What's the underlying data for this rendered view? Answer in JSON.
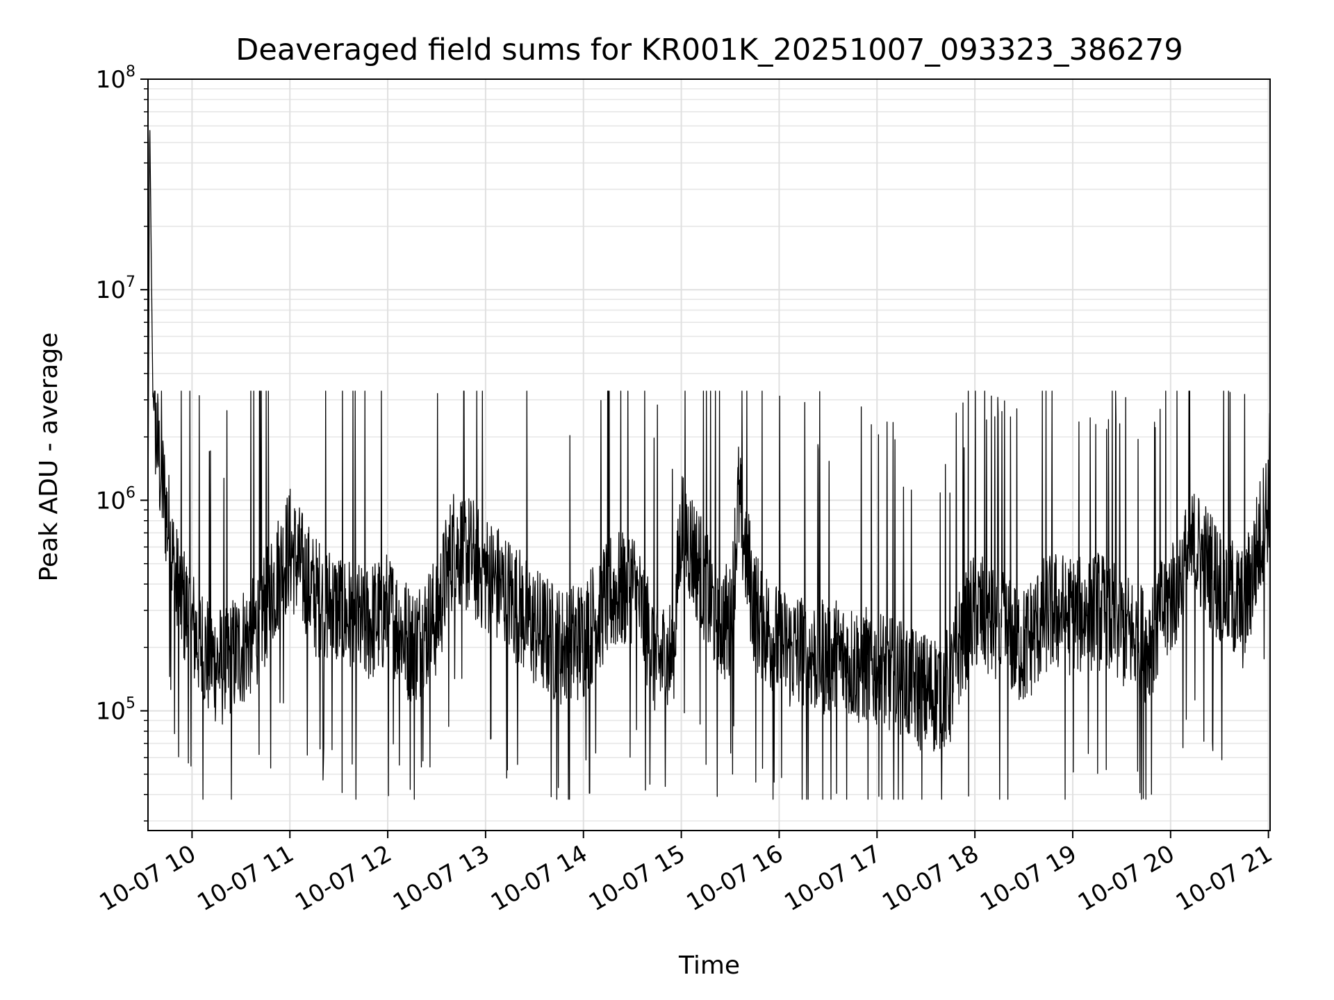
{
  "chart_data": {
    "type": "line",
    "title": "Deaveraged field sums for KR001K_20251007_093323_386279",
    "xlabel": "Time",
    "ylabel": "Peak ADU - average",
    "yscale": "log",
    "ylim": [
      27000,
      100000000
    ],
    "xlim": [
      "2025-10-07 09:33",
      "2025-10-07 21:01"
    ],
    "grid": true,
    "y_ticks": [
      {
        "base": "10",
        "exp": "5",
        "value": 100000
      },
      {
        "base": "10",
        "exp": "6",
        "value": 1000000
      },
      {
        "base": "10",
        "exp": "7",
        "value": 10000000
      },
      {
        "base": "10",
        "exp": "8",
        "value": 100000000
      }
    ],
    "x_ticks": [
      {
        "label": "10-07 10",
        "hour": 10
      },
      {
        "label": "10-07 11",
        "hour": 11
      },
      {
        "label": "10-07 12",
        "hour": 12
      },
      {
        "label": "10-07 13",
        "hour": 13
      },
      {
        "label": "10-07 14",
        "hour": 14
      },
      {
        "label": "10-07 15",
        "hour": 15
      },
      {
        "label": "10-07 16",
        "hour": 16
      },
      {
        "label": "10-07 17",
        "hour": 17
      },
      {
        "label": "10-07 18",
        "hour": 18
      },
      {
        "label": "10-07 19",
        "hour": 19
      },
      {
        "label": "10-07 20",
        "hour": 20
      },
      {
        "label": "10-07 21",
        "hour": 21
      }
    ],
    "series": [
      {
        "color": "#000000",
        "x": [
          "09:33",
          "09:34",
          "09:36",
          "09:40",
          "09:45",
          "09:50",
          "10:00",
          "10:10",
          "10:20",
          "10:30",
          "10:40",
          "10:50",
          "11:00",
          "11:15",
          "11:30",
          "11:45",
          "12:00",
          "12:15",
          "12:30",
          "12:40",
          "12:50",
          "13:00",
          "13:15",
          "13:30",
          "13:45",
          "14:00",
          "14:15",
          "14:30",
          "14:45",
          "14:55",
          "15:00",
          "15:10",
          "15:20",
          "15:30",
          "15:35",
          "15:45",
          "16:00",
          "16:15",
          "16:30",
          "16:45",
          "17:00",
          "17:15",
          "17:30",
          "17:45",
          "17:50",
          "18:00",
          "18:15",
          "18:30",
          "18:45",
          "19:00",
          "19:15",
          "19:30",
          "19:45",
          "20:00",
          "20:15",
          "20:30",
          "20:45",
          "21:00",
          "21:01"
        ],
        "values": [
          700000,
          72000000,
          3000000,
          1500000,
          800000,
          400000,
          250000,
          180000,
          160000,
          200000,
          250000,
          400000,
          600000,
          350000,
          300000,
          250000,
          300000,
          200000,
          280000,
          600000,
          550000,
          450000,
          350000,
          250000,
          200000,
          220000,
          350000,
          400000,
          170000,
          180000,
          800000,
          500000,
          300000,
          250000,
          1000000,
          300000,
          200000,
          190000,
          180000,
          170000,
          160000,
          140000,
          120000,
          130000,
          200000,
          300000,
          250000,
          200000,
          300000,
          280000,
          300000,
          250000,
          200000,
          350000,
          600000,
          400000,
          300000,
          1000000,
          1500000
        ]
      }
    ]
  }
}
